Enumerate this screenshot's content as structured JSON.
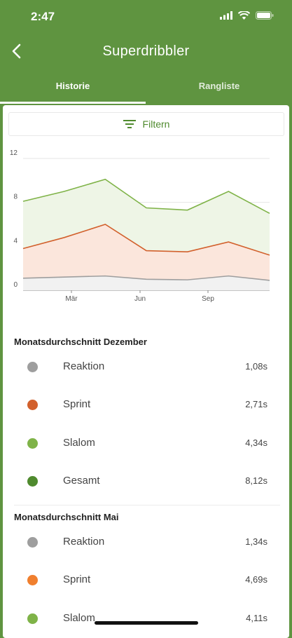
{
  "status": {
    "time": "2:47"
  },
  "nav": {
    "title": "Superdribbler"
  },
  "tabs": [
    {
      "label": "Historie"
    },
    {
      "label": "Rangliste"
    }
  ],
  "filter": {
    "label": "Filtern"
  },
  "colors": {
    "reaktion": "#9e9e9e",
    "sprint_dec": "#d2602c",
    "sprint_may": "#f07f2e",
    "slalom": "#7fb348",
    "gesamt": "#4f8a2e"
  },
  "chart_data": {
    "type": "area",
    "x_tick_labels": [
      "Mär",
      "Jun",
      "Sep"
    ],
    "y_tick_labels": [
      "0",
      "4",
      "8",
      "12"
    ],
    "ylim": [
      0,
      12
    ],
    "x": [
      0,
      1,
      2,
      3,
      4,
      5,
      6
    ],
    "series": [
      {
        "values": [
          1.1,
          1.2,
          1.3,
          1.0,
          0.95,
          1.3,
          0.9
        ]
      },
      {
        "values": [
          3.8,
          4.8,
          6.0,
          3.6,
          3.5,
          4.4,
          3.2
        ]
      },
      {
        "values": [
          8.1,
          9.0,
          10.1,
          7.5,
          7.3,
          9.0,
          7.0
        ]
      }
    ],
    "grid": true
  },
  "sections": [
    {
      "title": "Monatsdurchschnitt Dezember",
      "rows": [
        {
          "label": "Reaktion",
          "value": "1,08s",
          "color": "#9e9e9e"
        },
        {
          "label": "Sprint",
          "value": "2,71s",
          "color": "#d2602c"
        },
        {
          "label": "Slalom",
          "value": "4,34s",
          "color": "#7fb348"
        },
        {
          "label": "Gesamt",
          "value": "8,12s",
          "color": "#4f8a2e"
        }
      ]
    },
    {
      "title": "Monatsdurchschnitt Mai",
      "rows": [
        {
          "label": "Reaktion",
          "value": "1,34s",
          "color": "#9e9e9e"
        },
        {
          "label": "Sprint",
          "value": "4,69s",
          "color": "#f07f2e"
        },
        {
          "label": "Slalom",
          "value": "4,11s",
          "color": "#7fb348"
        }
      ]
    }
  ]
}
